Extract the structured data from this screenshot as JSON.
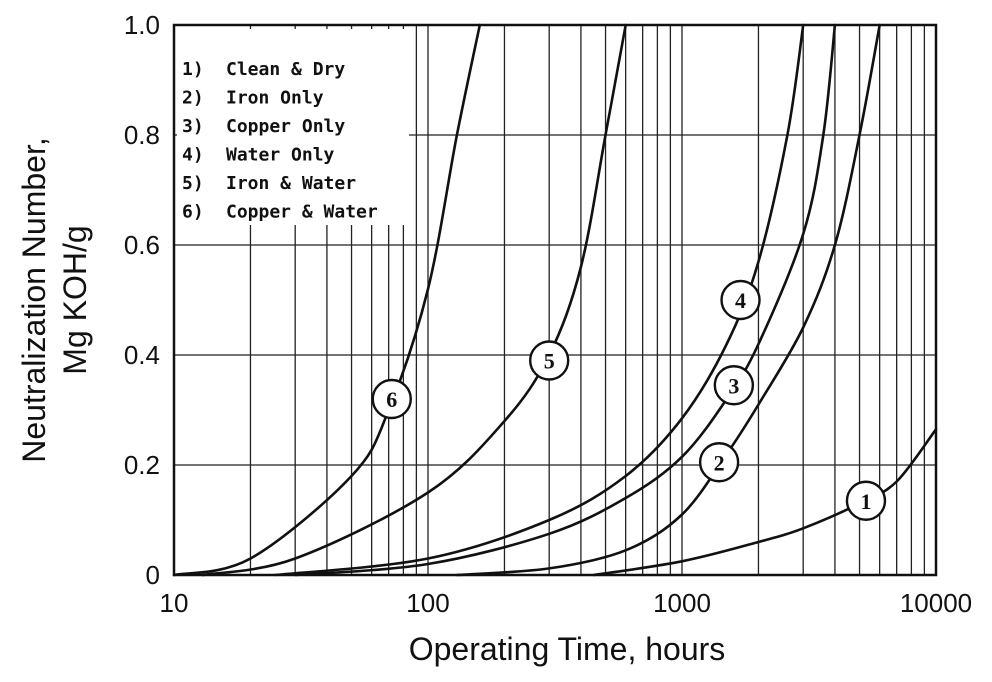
{
  "chart_data": {
    "type": "line",
    "title": "",
    "xlabel": "Operating Time, hours",
    "ylabel": [
      "Neutralization Number,",
      "Mg KOH/g"
    ],
    "x_scale": "log",
    "xlim": [
      10,
      10000
    ],
    "ylim": [
      0,
      1.0
    ],
    "x_ticks": [
      {
        "value": 10,
        "label": "10"
      },
      {
        "value": 100,
        "label": "100"
      },
      {
        "value": 1000,
        "label": "1000"
      },
      {
        "value": 10000,
        "label": "10000"
      }
    ],
    "y_ticks": [
      {
        "value": 0,
        "label": "0"
      },
      {
        "value": 0.2,
        "label": "0.2"
      },
      {
        "value": 0.4,
        "label": "0.4"
      },
      {
        "value": 0.6,
        "label": "0.6"
      },
      {
        "value": 0.8,
        "label": "0.8"
      },
      {
        "value": 1.0,
        "label": "1.0"
      }
    ],
    "grid": true,
    "legend_placement": "top-left",
    "legend": [
      {
        "number": "1)",
        "text": "Clean & Dry"
      },
      {
        "number": "2)",
        "text": "Iron Only"
      },
      {
        "number": "3)",
        "text": "Copper Only"
      },
      {
        "number": "4)",
        "text": "Water Only"
      },
      {
        "number": "5)",
        "text": "Iron & Water"
      },
      {
        "number": "6)",
        "text": "Copper & Water"
      }
    ],
    "series": [
      {
        "marker": "1",
        "marker_at": {
          "x": 5300,
          "y": 0.135
        },
        "points": [
          [
            450,
            0
          ],
          [
            1000,
            0.025
          ],
          [
            2000,
            0.06
          ],
          [
            3000,
            0.085
          ],
          [
            5000,
            0.13
          ],
          [
            7000,
            0.17
          ],
          [
            10000,
            0.265
          ]
        ]
      },
      {
        "marker": "2",
        "marker_at": {
          "x": 1400,
          "y": 0.205
        },
        "points": [
          [
            130,
            0
          ],
          [
            300,
            0.012
          ],
          [
            600,
            0.045
          ],
          [
            1000,
            0.11
          ],
          [
            1500,
            0.22
          ],
          [
            2000,
            0.31
          ],
          [
            3000,
            0.45
          ],
          [
            4000,
            0.6
          ],
          [
            5000,
            0.8
          ],
          [
            6000,
            1.0
          ]
        ]
      },
      {
        "marker": "3",
        "marker_at": {
          "x": 1600,
          "y": 0.345
        },
        "points": [
          [
            30,
            0
          ],
          [
            100,
            0.02
          ],
          [
            300,
            0.075
          ],
          [
            600,
            0.14
          ],
          [
            1000,
            0.215
          ],
          [
            1500,
            0.32
          ],
          [
            2000,
            0.42
          ],
          [
            3000,
            0.62
          ],
          [
            3600,
            0.8
          ],
          [
            4000,
            1.0
          ]
        ]
      },
      {
        "marker": "4",
        "marker_at": {
          "x": 1700,
          "y": 0.5
        },
        "points": [
          [
            25,
            0
          ],
          [
            100,
            0.03
          ],
          [
            300,
            0.1
          ],
          [
            600,
            0.18
          ],
          [
            1000,
            0.285
          ],
          [
            1500,
            0.42
          ],
          [
            2000,
            0.57
          ],
          [
            2600,
            0.8
          ],
          [
            3000,
            1.0
          ]
        ]
      },
      {
        "marker": "5",
        "marker_at": {
          "x": 300,
          "y": 0.39
        },
        "points": [
          [
            13,
            0
          ],
          [
            30,
            0.03
          ],
          [
            100,
            0.15
          ],
          [
            200,
            0.28
          ],
          [
            300,
            0.4
          ],
          [
            400,
            0.56
          ],
          [
            500,
            0.8
          ],
          [
            600,
            1.0
          ]
        ]
      },
      {
        "marker": "6",
        "marker_at": {
          "x": 72,
          "y": 0.32
        },
        "points": [
          [
            10,
            0
          ],
          [
            20,
            0.03
          ],
          [
            50,
            0.18
          ],
          [
            70,
            0.3
          ],
          [
            100,
            0.52
          ],
          [
            130,
            0.8
          ],
          [
            160,
            1.0
          ]
        ]
      }
    ]
  }
}
